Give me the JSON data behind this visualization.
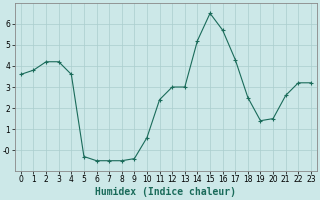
{
  "x": [
    0,
    1,
    2,
    3,
    4,
    5,
    6,
    7,
    8,
    9,
    10,
    11,
    12,
    13,
    14,
    15,
    16,
    17,
    18,
    19,
    20,
    21,
    22,
    23
  ],
  "y": [
    3.6,
    3.8,
    4.2,
    4.2,
    3.6,
    -0.3,
    -0.5,
    -0.5,
    -0.5,
    -0.4,
    0.6,
    2.4,
    3.0,
    3.0,
    5.2,
    6.5,
    5.7,
    4.3,
    2.5,
    1.4,
    1.5,
    2.6,
    3.2,
    3.2
  ],
  "line_color": "#1a6b5a",
  "marker": "+",
  "marker_size": 3,
  "bg_color": "#cce8e8",
  "grid_color": "#aacece",
  "xlabel": "Humidex (Indice chaleur)",
  "ylim": [
    -1.0,
    7.0
  ],
  "xlim": [
    -0.5,
    23.5
  ],
  "yticks": [
    0,
    1,
    2,
    3,
    4,
    5,
    6
  ],
  "ytick_labels": [
    "-0",
    "1",
    "2",
    "3",
    "4",
    "5",
    "6"
  ],
  "xticks": [
    0,
    1,
    2,
    3,
    4,
    5,
    6,
    7,
    8,
    9,
    10,
    11,
    12,
    13,
    14,
    15,
    16,
    17,
    18,
    19,
    20,
    21,
    22,
    23
  ],
  "tick_label_fontsize": 5.5,
  "xlabel_fontsize": 7.0
}
